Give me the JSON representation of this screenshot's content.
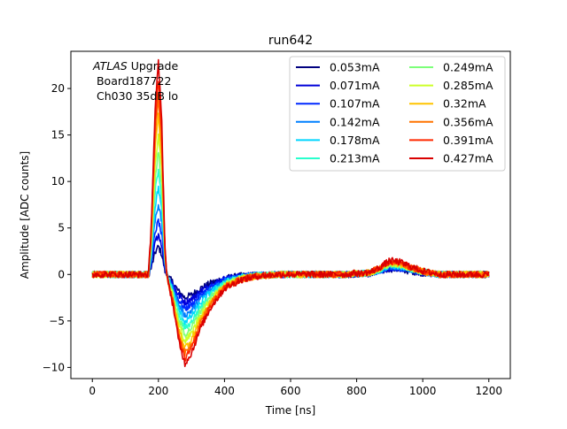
{
  "chart_data": {
    "type": "line",
    "title": "run642",
    "xlabel": "Time [ns]",
    "ylabel": "Amplitude [ADC counts]",
    "xlim": [
      -65,
      1265
    ],
    "ylim": [
      -11.2,
      24.0
    ],
    "xticks": [
      0,
      200,
      400,
      600,
      800,
      1000,
      1200
    ],
    "yticks": [
      -10,
      -5,
      0,
      5,
      10,
      15,
      20
    ],
    "yticks_text": [
      "−10",
      "−5",
      "0",
      "5",
      "10",
      "15",
      "20"
    ],
    "grid": false,
    "legend_placement": "top-right",
    "legend_columns": 2,
    "annotation": {
      "lines": [
        "ATLAS Upgrade",
        " Board187722",
        "Ch030 35dB lo"
      ],
      "italic_word": "ATLAS"
    },
    "pulse_shape_points_ns": {
      "t": [
        0,
        170,
        178,
        190,
        200,
        210,
        220,
        232,
        245,
        260,
        280,
        300,
        330,
        360,
        400,
        450,
        500,
        560,
        620,
        700,
        780,
        840,
        870,
        900,
        930,
        960,
        1000,
        1050,
        1100,
        1150,
        1200
      ],
      "normalized_shape": [
        0,
        0,
        0.22,
        0.78,
        1.0,
        0.72,
        0.12,
        -0.14,
        -0.36,
        -0.72,
        -1.0,
        -0.88,
        -0.58,
        -0.36,
        -0.16,
        -0.06,
        -0.02,
        0.0,
        0.0,
        0.0,
        0.0,
        0.03,
        0.1,
        0.2,
        0.18,
        0.12,
        0.05,
        0.0,
        0.0,
        0.0,
        0.0
      ]
    },
    "series": [
      {
        "name": "0.053mA",
        "color": "#00007f",
        "peak": 3.0,
        "undershoot": -2.5,
        "bump": 0.6,
        "noise": 0.35
      },
      {
        "name": "0.071mA",
        "color": "#0000d9",
        "peak": 4.4,
        "undershoot": -3.0,
        "bump": 0.7,
        "noise": 0.35
      },
      {
        "name": "0.107mA",
        "color": "#0029ff",
        "peak": 5.8,
        "undershoot": -3.7,
        "bump": 0.8,
        "noise": 0.35
      },
      {
        "name": "0.142mA",
        "color": "#0080ff",
        "peak": 7.6,
        "undershoot": -4.4,
        "bump": 0.9,
        "noise": 0.35
      },
      {
        "name": "0.178mA",
        "color": "#00d5ff",
        "peak": 9.4,
        "undershoot": -5.1,
        "bump": 1.0,
        "noise": 0.35
      },
      {
        "name": "0.213mA",
        "color": "#29ffcd",
        "peak": 11.4,
        "undershoot": -5.8,
        "bump": 1.1,
        "noise": 0.35
      },
      {
        "name": "0.249mA",
        "color": "#7cff79",
        "peak": 13.2,
        "undershoot": -6.5,
        "bump": 1.15,
        "noise": 0.35
      },
      {
        "name": "0.285mA",
        "color": "#cdff29",
        "peak": 15.2,
        "undershoot": -7.2,
        "bump": 1.2,
        "noise": 0.35
      },
      {
        "name": "0.32mA",
        "color": "#ffc400",
        "peak": 17.1,
        "undershoot": -7.9,
        "bump": 1.3,
        "noise": 0.35
      },
      {
        "name": "0.356mA",
        "color": "#ff7300",
        "peak": 19.1,
        "undershoot": -8.5,
        "bump": 1.35,
        "noise": 0.35
      },
      {
        "name": "0.391mA",
        "color": "#ff2900",
        "peak": 21.0,
        "undershoot": -9.1,
        "bump": 1.4,
        "noise": 0.35
      },
      {
        "name": "0.427mA",
        "color": "#d90000",
        "peak": 22.8,
        "undershoot": -9.6,
        "bump": 1.5,
        "noise": 0.35
      }
    ]
  }
}
